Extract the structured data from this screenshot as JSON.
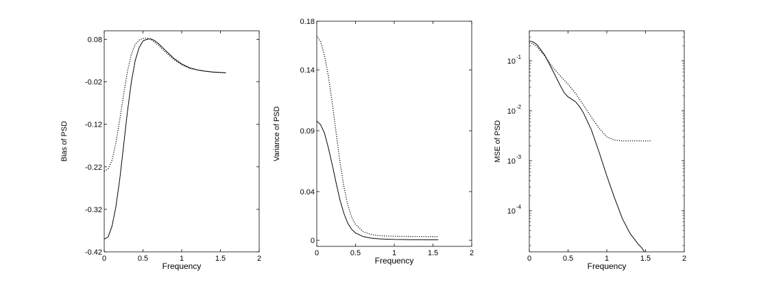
{
  "chart_data": [
    {
      "type": "line",
      "xlabel": "Frequency",
      "ylabel": "Bias of PSD",
      "xlim": [
        0,
        2
      ],
      "ylim": [
        -0.42,
        0.1
      ],
      "x_scale": "linear",
      "y_scale": "linear",
      "grid": false,
      "xticks": [
        0,
        0.5,
        1,
        1.5,
        2
      ],
      "xtick_labels": [
        "0",
        "0.5",
        "1",
        "1.5",
        "2"
      ],
      "yticks": [
        -0.42,
        -0.32,
        -0.22,
        -0.12,
        -0.02,
        0.08
      ],
      "ytick_labels": [
        "-0.42",
        "-0.32",
        "-0.22",
        "-0.12",
        "-0.02",
        "0.08"
      ],
      "series": [
        {
          "style": "solid",
          "color": "#000000",
          "x": [
            0,
            0.05,
            0.1,
            0.15,
            0.2,
            0.25,
            0.3,
            0.35,
            0.4,
            0.45,
            0.5,
            0.55,
            0.6,
            0.65,
            0.7,
            0.8,
            0.9,
            1.0,
            1.1,
            1.2,
            1.3,
            1.4,
            1.5,
            1.57
          ],
          "y": [
            -0.39,
            -0.385,
            -0.36,
            -0.315,
            -0.25,
            -0.17,
            -0.09,
            -0.02,
            0.03,
            0.06,
            0.076,
            0.08,
            0.081,
            0.077,
            0.07,
            0.052,
            0.035,
            0.022,
            0.013,
            0.008,
            0.005,
            0.003,
            0.002,
            0.001
          ]
        },
        {
          "style": "dotted",
          "color": "#000000",
          "x": [
            0,
            0.05,
            0.1,
            0.15,
            0.2,
            0.25,
            0.3,
            0.35,
            0.4,
            0.45,
            0.5,
            0.55,
            0.6,
            0.7,
            0.8,
            0.9,
            1.0,
            1.1,
            1.2,
            1.3,
            1.4,
            1.5,
            1.57
          ],
          "y": [
            -0.23,
            -0.225,
            -0.205,
            -0.165,
            -0.11,
            -0.05,
            0.005,
            0.045,
            0.068,
            0.078,
            0.082,
            0.083,
            0.08,
            0.066,
            0.048,
            0.032,
            0.02,
            0.012,
            0.008,
            0.005,
            0.003,
            0.002,
            0.001
          ]
        }
      ]
    },
    {
      "type": "line",
      "xlabel": "Frequency",
      "ylabel": "Variance of PSD",
      "xlim": [
        0,
        2
      ],
      "ylim": [
        -0.005,
        0.18
      ],
      "x_scale": "linear",
      "y_scale": "linear",
      "grid": false,
      "xticks": [
        0,
        0.5,
        1,
        1.5,
        2
      ],
      "xtick_labels": [
        "0",
        "0.5",
        "1",
        "1.5",
        "2"
      ],
      "yticks": [
        0,
        0.04,
        0.09,
        0.14,
        0.18
      ],
      "ytick_labels": [
        "0",
        "0.04",
        "0.09",
        "0.14",
        "0.18"
      ],
      "series": [
        {
          "style": "solid",
          "color": "#000000",
          "x": [
            0,
            0.05,
            0.1,
            0.15,
            0.2,
            0.25,
            0.3,
            0.35,
            0.4,
            0.45,
            0.5,
            0.6,
            0.7,
            0.8,
            0.9,
            1.0,
            1.1,
            1.2,
            1.3,
            1.4,
            1.5,
            1.57
          ],
          "y": [
            0.098,
            0.095,
            0.088,
            0.076,
            0.062,
            0.047,
            0.033,
            0.022,
            0.014,
            0.009,
            0.006,
            0.003,
            0.0018,
            0.0012,
            0.0009,
            0.0007,
            0.0006,
            0.0005,
            0.0005,
            0.0004,
            0.0004,
            0.0004
          ]
        },
        {
          "style": "dotted",
          "color": "#000000",
          "x": [
            0,
            0.05,
            0.1,
            0.15,
            0.2,
            0.25,
            0.3,
            0.35,
            0.4,
            0.45,
            0.5,
            0.6,
            0.7,
            0.8,
            0.9,
            1.0,
            1.1,
            1.2,
            1.3,
            1.4,
            1.5,
            1.57
          ],
          "y": [
            0.168,
            0.163,
            0.152,
            0.135,
            0.113,
            0.088,
            0.064,
            0.044,
            0.029,
            0.019,
            0.013,
            0.007,
            0.0048,
            0.0039,
            0.0035,
            0.0033,
            0.0032,
            0.0031,
            0.0031,
            0.003,
            0.003,
            0.003
          ]
        }
      ]
    },
    {
      "type": "line",
      "xlabel": "Frequency",
      "ylabel": "MSE of PSD",
      "xlim": [
        0,
        2
      ],
      "ylim": [
        1.5e-05,
        0.4
      ],
      "x_scale": "linear",
      "y_scale": "log",
      "grid": false,
      "xticks": [
        0,
        0.5,
        1,
        1.5,
        2
      ],
      "xtick_labels": [
        "0",
        "0.5",
        "1",
        "1.5",
        "2"
      ],
      "yticks": [
        0.0001,
        0.001,
        0.01,
        0.1
      ],
      "ytick_labels": [
        "10",
        "10",
        "10",
        "10"
      ],
      "ytick_exponents": [
        "-4",
        "-3",
        "-2",
        "-1"
      ],
      "series": [
        {
          "style": "solid",
          "color": "#000000",
          "x": [
            0,
            0.05,
            0.1,
            0.2,
            0.3,
            0.4,
            0.45,
            0.5,
            0.55,
            0.6,
            0.65,
            0.7,
            0.8,
            0.9,
            1.0,
            1.1,
            1.2,
            1.3,
            1.4,
            1.45,
            1.5,
            1.55
          ],
          "y": [
            0.25,
            0.24,
            0.21,
            0.13,
            0.065,
            0.032,
            0.023,
            0.019,
            0.017,
            0.015,
            0.012,
            0.009,
            0.0042,
            0.0015,
            0.0005,
            0.00018,
            7e-05,
            3.5e-05,
            2.2e-05,
            1.8e-05,
            1.4e-05,
            1.05e-05
          ]
        },
        {
          "style": "dotted",
          "color": "#000000",
          "x": [
            0,
            0.05,
            0.1,
            0.2,
            0.3,
            0.4,
            0.5,
            0.6,
            0.7,
            0.8,
            0.9,
            1.0,
            1.1,
            1.2,
            1.3,
            1.4,
            1.5,
            1.57
          ],
          "y": [
            0.23,
            0.22,
            0.19,
            0.125,
            0.075,
            0.05,
            0.034,
            0.022,
            0.013,
            0.0075,
            0.0045,
            0.003,
            0.0026,
            0.0025,
            0.0025,
            0.0025,
            0.0025,
            0.0025
          ]
        }
      ]
    }
  ]
}
